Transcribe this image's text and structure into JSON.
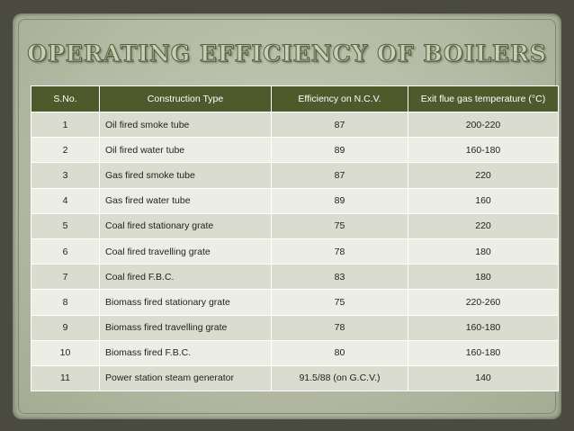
{
  "title": "OPERATING EFFICIENCY OF BOILERS",
  "headers": [
    "S.No.",
    "Construction Type",
    "Efficiency on N.C.V.",
    "Exit flue gas temperature (°C)"
  ],
  "rows": [
    [
      "1",
      "Oil fired smoke tube",
      "87",
      "200-220"
    ],
    [
      "2",
      "Oil fired water tube",
      "89",
      "160-180"
    ],
    [
      "3",
      "Gas fired smoke tube",
      "87",
      "220"
    ],
    [
      "4",
      "Gas fired water tube",
      "89",
      "160"
    ],
    [
      "5",
      "Coal fired stationary grate",
      "75",
      "220"
    ],
    [
      "6",
      "Coal fired travelling grate",
      "78",
      "180"
    ],
    [
      "7",
      "Coal fired F.B.C.",
      "83",
      "180"
    ],
    [
      "8",
      "Biomass fired stationary grate",
      "75",
      "220-260"
    ],
    [
      "9",
      "Biomass fired travelling grate",
      "78",
      "160-180"
    ],
    [
      "10",
      "Biomass fired F.B.C.",
      "80",
      "160-180"
    ],
    [
      "11",
      "Power station steam generator",
      "91.5/88 (on G.C.V.)",
      "140"
    ]
  ],
  "colors": {
    "header_bg": "#4e5a2c",
    "row_odd": "#d9dcce",
    "row_even": "#eceee6"
  }
}
